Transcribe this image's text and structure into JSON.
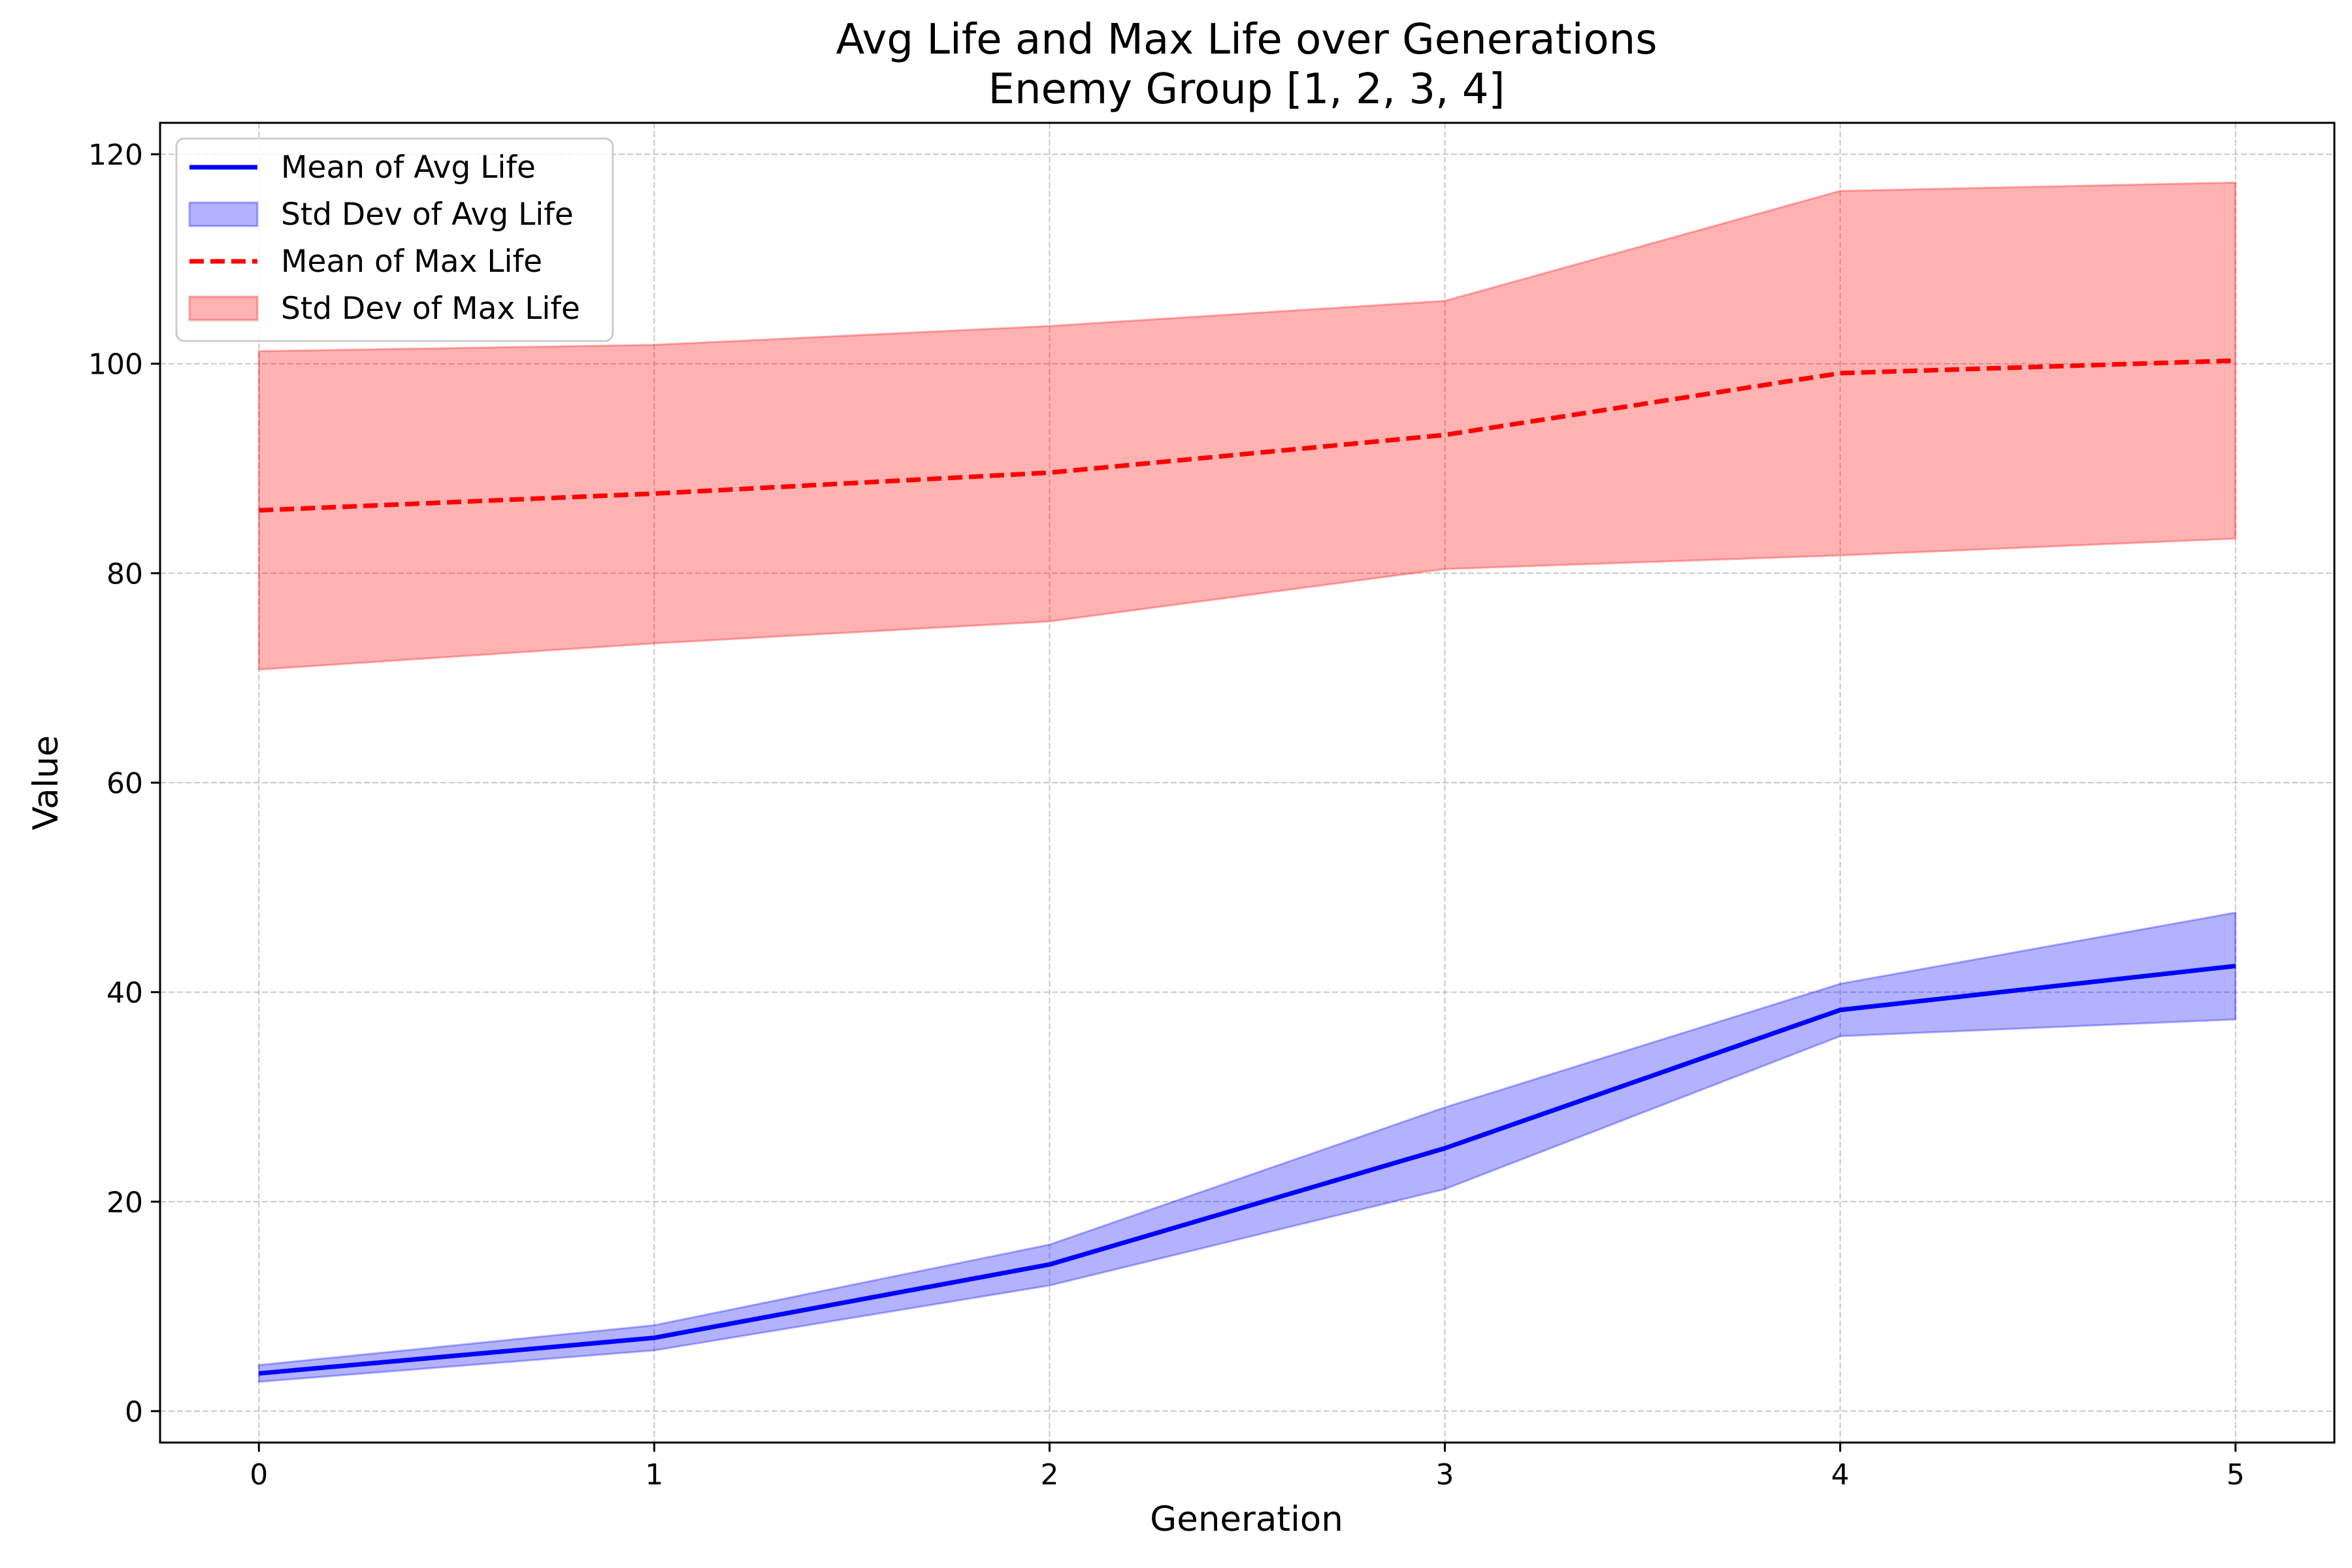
{
  "chart_data": {
    "type": "line",
    "title_lines": [
      "Avg Life and Max Life over Generations",
      "Enemy Group [1, 2, 3, 4]"
    ],
    "xlabel": "Generation",
    "ylabel": "Value",
    "x": [
      0,
      1,
      2,
      3,
      4,
      5
    ],
    "xlim": [
      -0.25,
      5.25
    ],
    "ylim": [
      -3,
      123
    ],
    "xticks": [
      0,
      1,
      2,
      3,
      4,
      5
    ],
    "yticks": [
      0,
      20,
      40,
      60,
      80,
      100,
      120
    ],
    "grid": true,
    "legend_position": "top-left",
    "bands": [
      {
        "name": "Std Dev of Avg Life",
        "color": "#0000ff",
        "upper": [
          4.4,
          8.2,
          15.9,
          29.0,
          40.8,
          47.6
        ],
        "lower": [
          2.8,
          5.8,
          12.0,
          21.2,
          35.8,
          37.4
        ]
      },
      {
        "name": "Std Dev of Max Life",
        "color": "#ff0000",
        "upper": [
          101.2,
          101.8,
          103.6,
          106.0,
          116.5,
          117.3
        ],
        "lower": [
          70.8,
          73.3,
          75.4,
          80.4,
          81.7,
          83.3
        ]
      }
    ],
    "series": [
      {
        "name": "Mean of Avg Life",
        "color": "#0000ff",
        "style": "solid",
        "values": [
          3.6,
          7.0,
          14.0,
          25.1,
          38.3,
          42.5
        ]
      },
      {
        "name": "Mean of Max Life",
        "color": "#ff0000",
        "style": "dashed",
        "values": [
          86.0,
          87.6,
          89.6,
          93.2,
          99.1,
          100.3
        ]
      }
    ],
    "legend": [
      {
        "label": "Mean of Avg Life",
        "kind": "line",
        "color": "#0000ff",
        "style": "solid"
      },
      {
        "label": "Std Dev of Avg Life",
        "kind": "patch",
        "color": "#0000ff"
      },
      {
        "label": "Mean of Max Life",
        "kind": "line",
        "color": "#ff0000",
        "style": "dashed"
      },
      {
        "label": "Std Dev of Max Life",
        "kind": "patch",
        "color": "#ff0000"
      }
    ]
  }
}
